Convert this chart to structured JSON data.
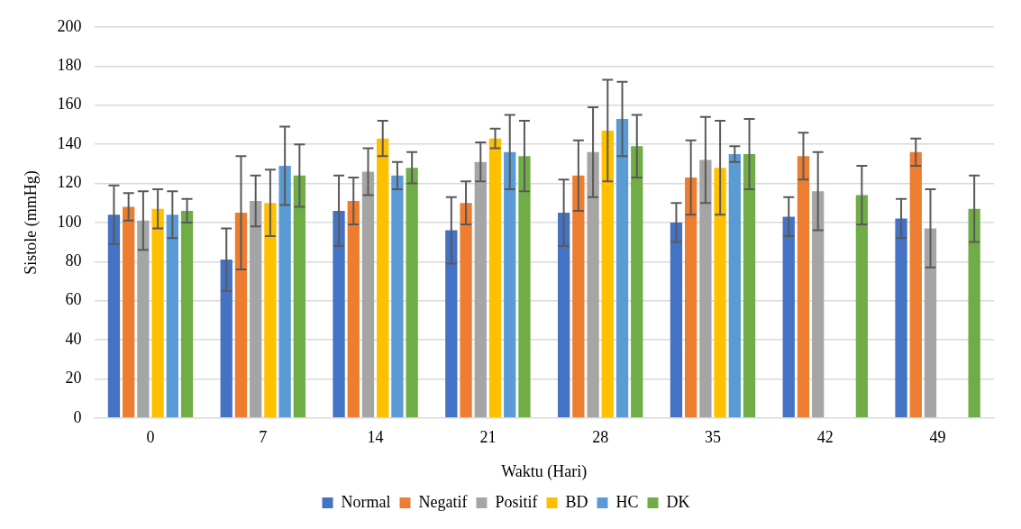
{
  "chart_data": {
    "type": "bar",
    "xlabel": "Waktu (Hari)",
    "ylabel": "Sistole (mmHg)",
    "categories": [
      "0",
      "7",
      "14",
      "21",
      "28",
      "35",
      "42",
      "49"
    ],
    "ylim": [
      0,
      200
    ],
    "yticks": [
      0,
      20,
      40,
      60,
      80,
      100,
      120,
      140,
      160,
      180,
      200
    ],
    "grid": "y",
    "legend": "bottom",
    "series": [
      {
        "name": "Normal",
        "color": "#4472c4",
        "values": [
          104,
          81,
          106,
          96,
          105,
          100,
          103,
          102
        ],
        "errors": [
          15,
          16,
          18,
          17,
          17,
          10,
          10,
          10
        ]
      },
      {
        "name": "Negatif",
        "color": "#ed7d31",
        "values": [
          108,
          105,
          111,
          110,
          124,
          123,
          134,
          136
        ],
        "errors": [
          7,
          29,
          12,
          11,
          18,
          19,
          12,
          7
        ]
      },
      {
        "name": "Positif",
        "color": "#a5a5a5",
        "values": [
          101,
          111,
          126,
          131,
          136,
          132,
          116,
          97
        ],
        "errors": [
          15,
          13,
          12,
          10,
          23,
          22,
          20,
          20
        ]
      },
      {
        "name": "BD",
        "color": "#ffc000",
        "values": [
          107,
          110,
          143,
          143,
          147,
          128,
          null,
          null
        ],
        "errors": [
          10,
          17,
          9,
          5,
          26,
          24,
          null,
          null
        ]
      },
      {
        "name": "HC",
        "color": "#5b9bd5",
        "values": [
          104,
          129,
          124,
          136,
          153,
          135,
          null,
          null
        ],
        "errors": [
          12,
          20,
          7,
          19,
          19,
          4,
          null,
          null
        ]
      },
      {
        "name": "DK",
        "color": "#70ad47",
        "values": [
          106,
          124,
          128,
          134,
          139,
          135,
          114,
          107
        ],
        "errors": [
          6,
          16,
          8,
          18,
          16,
          18,
          15,
          17
        ]
      }
    ]
  }
}
